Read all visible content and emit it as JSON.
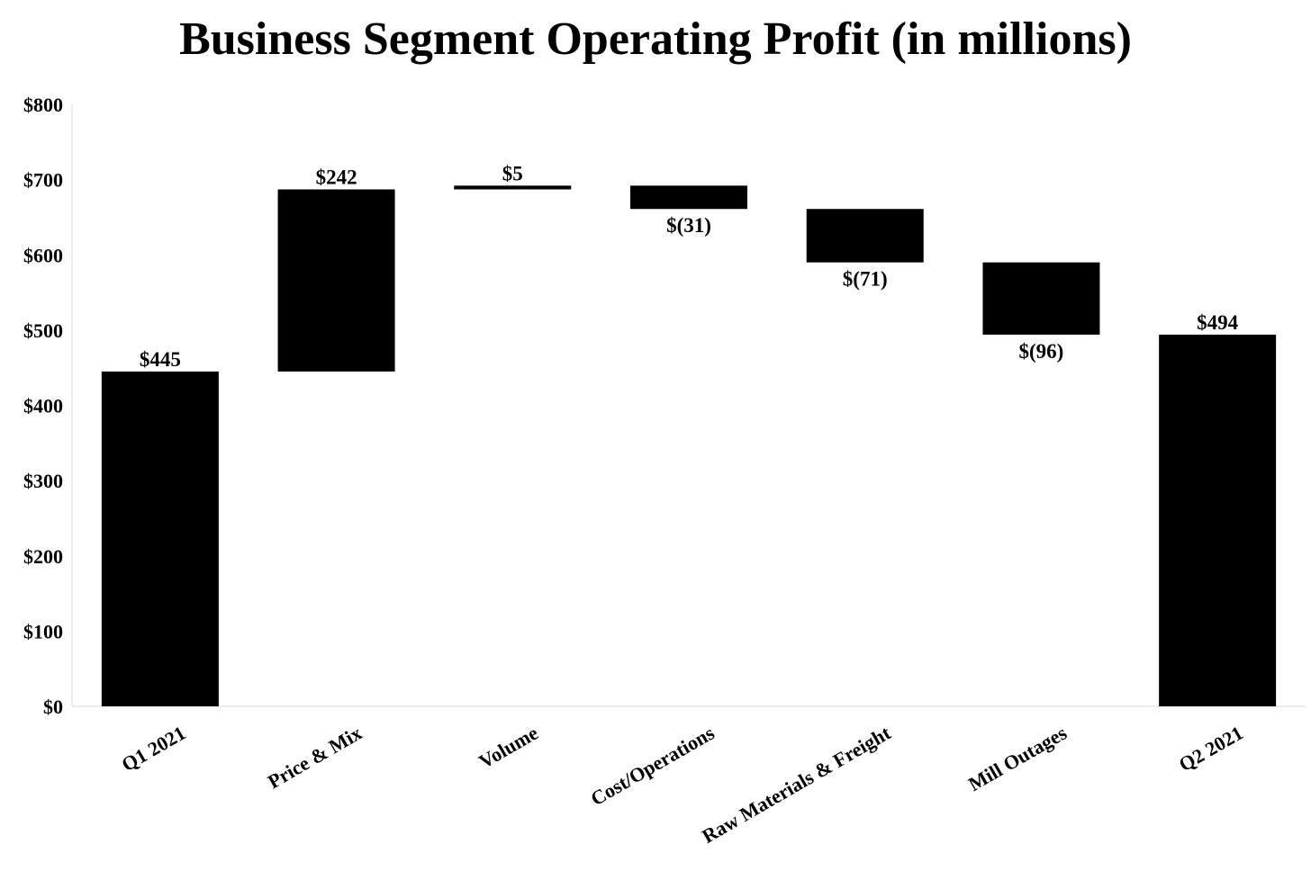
{
  "chart_data": {
    "type": "bar",
    "subtype": "waterfall",
    "title": "Business Segment Operating Profit (in millions)",
    "xlabel": "",
    "ylabel": "",
    "ylim": [
      0,
      800
    ],
    "yticks": [
      0,
      100,
      200,
      300,
      400,
      500,
      600,
      700,
      800
    ],
    "ytick_labels": [
      "$0",
      "$100",
      "$200",
      "$300",
      "$400",
      "$500",
      "$600",
      "$700",
      "$800"
    ],
    "categories": [
      "Q1 2021",
      "Price & Mix",
      "Volume",
      "Cost/Operations",
      "Raw Materials & Freight",
      "Mill Outages",
      "Q2 2021"
    ],
    "values": [
      445,
      242,
      5,
      -31,
      -71,
      -96,
      494
    ],
    "kinds": [
      "total",
      "delta",
      "delta",
      "delta",
      "delta",
      "delta",
      "total"
    ],
    "data_labels": [
      "$445",
      "$242",
      "$5",
      "$(31)",
      "$(71)",
      "$(96)",
      "$494"
    ],
    "grid": false,
    "legend": "none",
    "bar_color": "#000000"
  }
}
